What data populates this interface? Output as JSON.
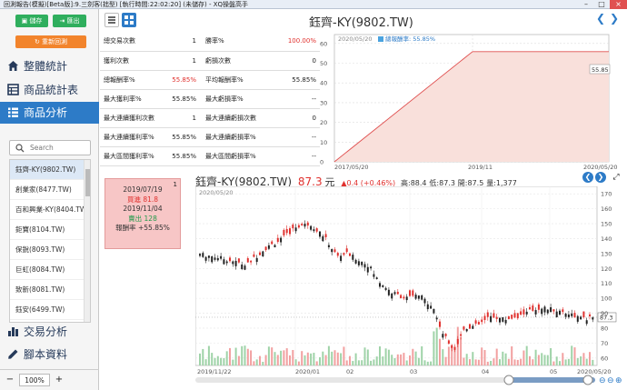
{
  "window": {
    "title": "回測報告(模擬)[Beta版]:9.三劍客(拙型) [執行時間:22:02:20] (未儲存) - XQ操盤高手"
  },
  "sidebar": {
    "save_label": "儲存",
    "export_label": "匯出",
    "rerun_label": "重新回測",
    "nav": [
      {
        "label": "整體統計",
        "icon": "home-icon"
      },
      {
        "label": "商品統計表",
        "icon": "table-icon"
      },
      {
        "label": "商品分析",
        "icon": "list-icon",
        "active": true
      },
      {
        "label": "交易分析",
        "icon": "bar-chart-icon"
      },
      {
        "label": "腳本資料",
        "icon": "pencil-icon"
      }
    ],
    "search_placeholder": "Search",
    "symbols": [
      "鈺齊-KY(9802.TW)",
      "創業家(8477.TW)",
      "百和興業-KY(8404.TW)",
      "鉅寶(8104.TW)",
      "保銳(8093.TW)",
      "巨虹(8084.TW)",
      "致新(8081.TW)",
      "鈺安(6499.TW)"
    ],
    "zoom": {
      "minus": "−",
      "value": "100%",
      "plus": "+"
    }
  },
  "header": {
    "title": "鈺齊-KY(9802.TW)"
  },
  "stats": [
    [
      "總交易次數",
      "1",
      "勝率%",
      "100.00%",
      "red"
    ],
    [
      "獲利次數",
      "1",
      "虧損次數",
      "0",
      ""
    ],
    [
      "總報酬率%",
      "55.85%",
      "平均報酬率%",
      "55.85%",
      "red"
    ],
    [
      "最大獲利率%",
      "55.85%",
      "最大虧損率%",
      "--",
      ""
    ],
    [
      "最大連續獲利次數",
      "1",
      "最大連續虧損次數",
      "0",
      ""
    ],
    [
      "最大連續獲利率%",
      "55.85%",
      "最大連續虧損率%",
      "--",
      ""
    ],
    [
      "最大區間獲利率%",
      "55.85%",
      "最大區間虧損率%",
      "--",
      ""
    ]
  ],
  "equity_chart": {
    "start_label": "2020/05/20",
    "legend": "總報酬率: 55.85%",
    "end_value_label": "55.85",
    "x_ticks": [
      "2017/05/20",
      "2019/11",
      "2020/05/20"
    ],
    "y_ticks": [
      "0",
      "10",
      "20",
      "30",
      "40",
      "50",
      "60"
    ]
  },
  "memo": {
    "index": "1",
    "lines": [
      {
        "text": "2019/07/19",
        "color": "#333"
      },
      {
        "text": "買進 81.8",
        "color": "#e0312e"
      },
      {
        "text": "2019/11/04",
        "color": "#333"
      },
      {
        "text": "賣出 128",
        "color": "#1e9a4a"
      },
      {
        "text": "報酬率 +55.85%",
        "color": "#333"
      }
    ]
  },
  "quote": {
    "name": "鈺齊-KY(9802.TW)",
    "price": "87.3",
    "unit": "元",
    "change": "▲0.4 (+0.46%)",
    "high_label": "高:88.4",
    "low_label": "低:87.3",
    "open_label": "開:87.5",
    "volume_label": "量:1,377",
    "date_label": "2020/05/20",
    "last_label": "87.3",
    "price_ticks": [
      "170",
      "160",
      "150",
      "140",
      "130",
      "120",
      "110",
      "100",
      "90",
      "80",
      "70",
      "60"
    ],
    "x_ticks": [
      "2019/11/22",
      "2020/01",
      "02",
      "03",
      "04",
      "05",
      "2020/05/20"
    ]
  },
  "colors": {
    "accent": "#2d7bc7",
    "up": "#e0312e",
    "down": "#1e9a4a",
    "fill": "#f9e0db"
  }
}
